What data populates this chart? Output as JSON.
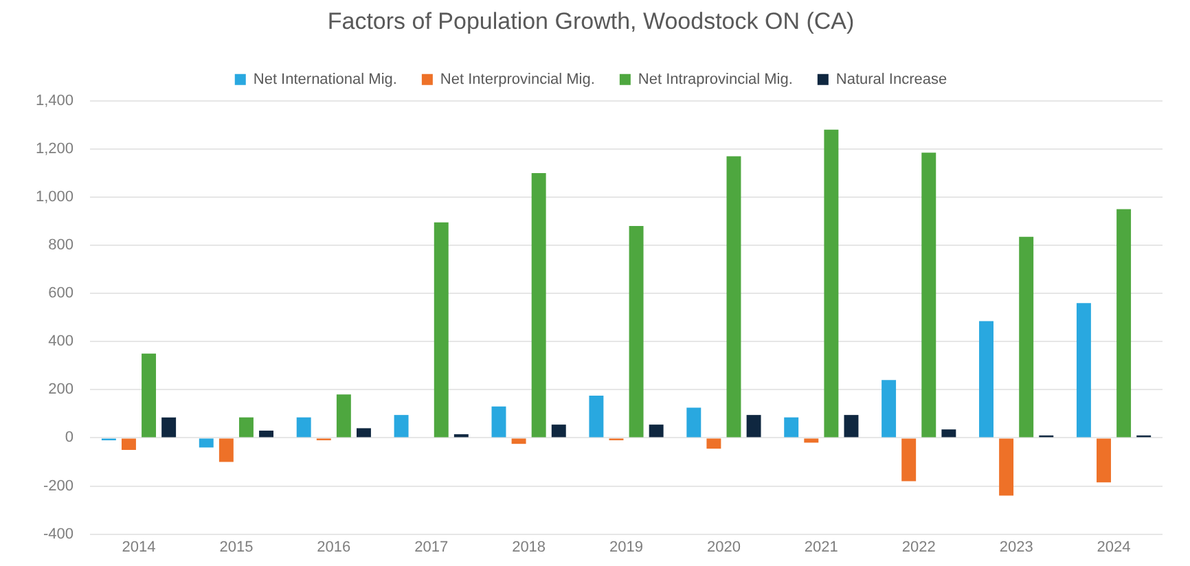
{
  "chart_data": {
    "type": "bar",
    "title": "Factors of Population Growth, Woodstock ON (CA)",
    "categories": [
      "2014",
      "2015",
      "2016",
      "2017",
      "2018",
      "2019",
      "2020",
      "2021",
      "2022",
      "2023",
      "2024"
    ],
    "series": [
      {
        "name": "Net International Mig.",
        "color": "#29a8e0",
        "values": [
          -10,
          -40,
          85,
          95,
          130,
          175,
          125,
          85,
          240,
          485,
          560
        ]
      },
      {
        "name": "Net Interprovincial Mig.",
        "color": "#ee7128",
        "values": [
          -50,
          -100,
          -10,
          0,
          -25,
          -10,
          -45,
          -20,
          -180,
          -240,
          -185
        ]
      },
      {
        "name": "Net Intraprovincial Mig.",
        "color": "#4ea73f",
        "values": [
          350,
          85,
          180,
          895,
          1100,
          880,
          1170,
          1280,
          1185,
          835,
          950
        ]
      },
      {
        "name": "Natural Increase",
        "color": "#0f2740",
        "values": [
          85,
          30,
          40,
          15,
          55,
          55,
          95,
          95,
          35,
          10,
          10
        ]
      }
    ],
    "ylim": [
      -400,
      1400
    ],
    "yticks": [
      {
        "value": -400,
        "label": "-400"
      },
      {
        "value": -200,
        "label": "-200"
      },
      {
        "value": 0,
        "label": "0"
      },
      {
        "value": 200,
        "label": "200"
      },
      {
        "value": 400,
        "label": "400"
      },
      {
        "value": 600,
        "label": "600"
      },
      {
        "value": 800,
        "label": "800"
      },
      {
        "value": 1000,
        "label": "1,000"
      },
      {
        "value": 1200,
        "label": "1,200"
      },
      {
        "value": 1400,
        "label": "1,400"
      }
    ],
    "grid": "y",
    "legend": "top"
  }
}
